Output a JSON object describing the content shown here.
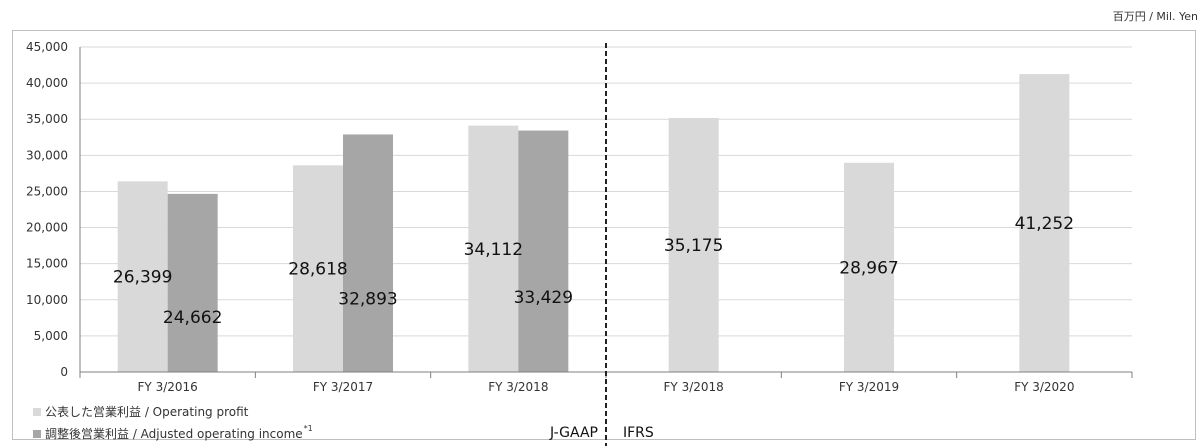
{
  "unit_label": "百万円 / Mil. Yen",
  "colors": {
    "operating": "#d9d9d9",
    "adjusted": "#a6a6a6",
    "grid": "#d9d9d9",
    "divider": "#222222"
  },
  "chart_data": {
    "type": "bar",
    "title": "",
    "xlabel": "",
    "ylabel": "",
    "ylim": [
      0,
      45000
    ],
    "yticks": [
      0,
      5000,
      10000,
      15000,
      20000,
      25000,
      30000,
      35000,
      40000,
      45000
    ],
    "ytick_labels": [
      "0",
      "5,000",
      "10,000",
      "15,000",
      "20,000",
      "25,000",
      "30,000",
      "35,000",
      "40,000",
      "45,000"
    ],
    "grid": true,
    "legend": "bottom-left",
    "categories": [
      "FY 3/2016",
      "FY 3/2017",
      "FY 3/2018",
      "FY 3/2018",
      "FY 3/2019",
      "FY 3/2020"
    ],
    "series": [
      {
        "name": "公表した営業利益 / Operating profit",
        "values": [
          26399,
          28618,
          34112,
          35175,
          28967,
          41252
        ],
        "labels": [
          "26,399",
          "28,618",
          "34,112",
          "35,175",
          "28,967",
          "41,252"
        ]
      },
      {
        "name": "調整後営業利益 / Adjusted operating income",
        "note": "*1",
        "values": [
          24662,
          32893,
          33429,
          null,
          null,
          null
        ],
        "labels": [
          "24,662",
          "32,893",
          "33,429",
          null,
          null,
          null
        ]
      }
    ],
    "regions": [
      {
        "label": "J-GAAP",
        "categories": [
          0,
          1,
          2
        ]
      },
      {
        "label": "IFRS",
        "categories": [
          3,
          4,
          5
        ]
      }
    ]
  }
}
